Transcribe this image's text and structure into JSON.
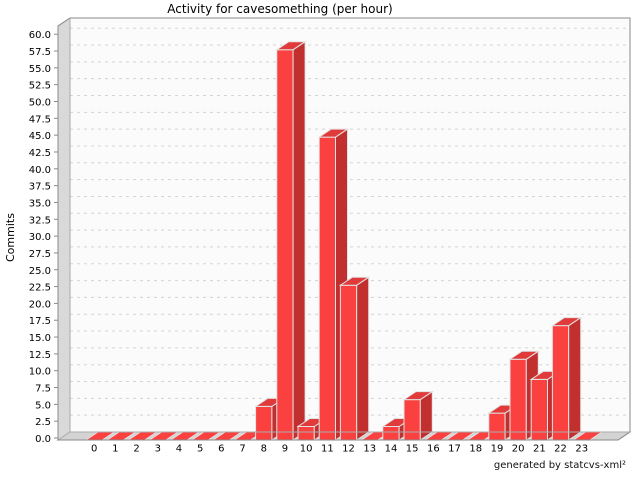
{
  "chart_data": {
    "type": "bar",
    "title": "Activity for cavesomething (per hour)",
    "ylabel": "Commits",
    "xlabel": "",
    "footer": "generated by statcvs-xml²",
    "categories": [
      "0",
      "1",
      "2",
      "3",
      "4",
      "5",
      "6",
      "7",
      "8",
      "9",
      "10",
      "11",
      "12",
      "13",
      "14",
      "15",
      "16",
      "17",
      "18",
      "19",
      "20",
      "21",
      "22",
      "23"
    ],
    "values": [
      0,
      0,
      0,
      0,
      0,
      0,
      0,
      0,
      5,
      58,
      2,
      45,
      23,
      0,
      2,
      6,
      0,
      0,
      0,
      4,
      12,
      9,
      17,
      0
    ],
    "ylim": [
      0,
      60
    ],
    "ytick_step": 2.5,
    "ytick_decimals": 1,
    "grid": true,
    "legend": false,
    "effect_3d": true,
    "colors": {
      "bar_front": "#fb4040",
      "bar_side": "#c22f2f",
      "bar_top": "#e03a3a",
      "bar_outline": "#e3e3e3",
      "plot_bg": "#fbfbfb",
      "gridline": "#d4d4d4",
      "wall": "#d9d9d9",
      "floor": "#d3d3d3",
      "border": "#8a8a8a",
      "border_inner": "#ababab",
      "text": "#000000"
    }
  }
}
